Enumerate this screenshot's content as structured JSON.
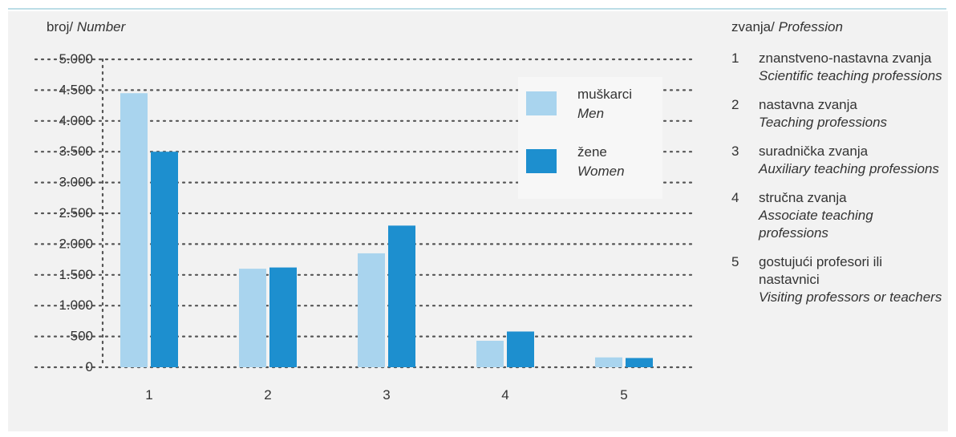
{
  "chart_data": {
    "type": "bar",
    "ylabel": "broj/",
    "ylabel_en": "Number",
    "categories": [
      "1",
      "2",
      "3",
      "4",
      "5"
    ],
    "series": [
      {
        "name": "muškarci",
        "name_en": "Men",
        "color": "#a9d4ee",
        "values": [
          4450,
          1600,
          1850,
          430,
          160
        ]
      },
      {
        "name": "žene",
        "name_en": "Women",
        "color": "#1d8fcf",
        "values": [
          3500,
          1620,
          2300,
          580,
          150
        ]
      }
    ],
    "ylim": [
      0,
      5000
    ],
    "yticks": [
      0,
      500,
      1000,
      1500,
      2000,
      2500,
      3000,
      3500,
      4000,
      4500,
      5000
    ],
    "ytick_labels": [
      "0",
      "500",
      "1.000",
      "1.500",
      "2.000",
      "2.500",
      "3.000",
      "3.500",
      "4.000",
      "4.500",
      "5.000"
    ],
    "grid": true,
    "legend_position": "top-right"
  },
  "side_legend": {
    "title": "zvanja/",
    "title_en": "Profession",
    "items": [
      {
        "num": "1",
        "hr": "znanstveno-nastavna zvanja",
        "en": "Scientific teaching professions"
      },
      {
        "num": "2",
        "hr": "nastavna zvanja",
        "en": "Teaching professions"
      },
      {
        "num": "3",
        "hr": "suradnička zvanja",
        "en": "Auxiliary teaching professions"
      },
      {
        "num": "4",
        "hr": "stručna zvanja",
        "en": "Associate teaching professions"
      },
      {
        "num": "5",
        "hr": "gostujući profesori ili nastavnici",
        "en": "Visiting professors or teachers"
      }
    ]
  }
}
